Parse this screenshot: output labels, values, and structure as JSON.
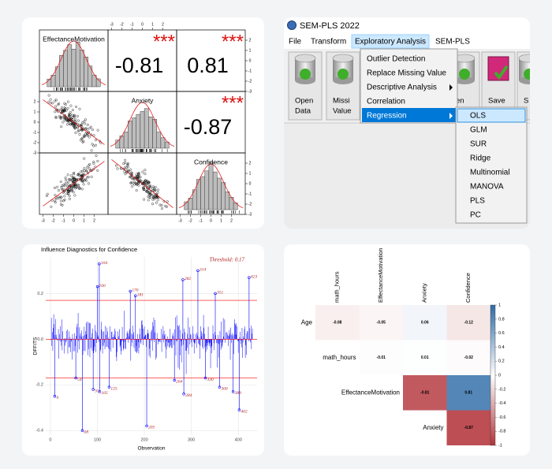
{
  "pairs_plot": {
    "variables": [
      "EffectanceMotivation",
      "Anxiety",
      "Confidence"
    ],
    "correlations": [
      [
        null,
        -0.81,
        0.81
      ],
      [
        null,
        null,
        -0.87
      ],
      [
        null,
        null,
        null
      ]
    ],
    "significance": "***",
    "xticks": [
      -3,
      -2,
      -1,
      0,
      1,
      2
    ],
    "yticks": [
      -3,
      -2,
      -1,
      0,
      1,
      2
    ]
  },
  "app_window": {
    "title": "SEM-PLS 2022",
    "menu": [
      "File",
      "Transform",
      "Exploratory Analysis",
      "SEM-PLS"
    ],
    "toolbar": [
      [
        "Open",
        "Data"
      ],
      [
        "Missi",
        "Value"
      ],
      [
        "en"
      ],
      [
        "Save"
      ],
      [
        "S"
      ]
    ],
    "dropdown": [
      "Outlier Detection",
      "Replace Missing Value",
      "Descriptive Analysis",
      "Correlation",
      "Regression"
    ],
    "submenu": [
      "OLS",
      "GLM",
      "SUR",
      "Ridge",
      "Multinomial",
      "MANOVA",
      "PLS",
      "PC"
    ]
  },
  "influence_plot": {
    "type": "lollipop",
    "title": "Influence Diagnostics for Confidence",
    "threshold": 0.17,
    "threshold_label": "Threshold: 0.17",
    "x_label": "Observation",
    "y_label": "DFFITS",
    "xlim": [
      -10,
      440
    ],
    "ylim": [
      -0.42,
      0.36
    ],
    "xticks": [
      0,
      100,
      200,
      300,
      400
    ],
    "yticks": [
      -0.4,
      -0.2,
      {
        "value": 0,
        "label": "0.0"
      },
      0.2
    ],
    "color": "#0000ff",
    "threshold_color": "#ff0000",
    "x": [
      104,
      100,
      170,
      181,
      282,
      314,
      351,
      423,
      9,
      54,
      91,
      105,
      125,
      68,
      205,
      264,
      284,
      330,
      360,
      389,
      402
    ],
    "values": [
      0.33,
      0.23,
      0.21,
      0.19,
      0.26,
      0.3,
      0.2,
      0.27,
      -0.25,
      -0.17,
      -0.22,
      -0.23,
      -0.21,
      -0.4,
      -0.38,
      -0.18,
      -0.24,
      -0.17,
      -0.21,
      -0.23,
      -0.31
    ]
  },
  "heatmap": {
    "columns": [
      "math_hours",
      "EffectanceMotivation",
      "Anxiety",
      "Confidence"
    ],
    "rows": [
      "Age",
      "math_hours",
      "EffectanceMotivation",
      "Anxiety"
    ],
    "values": [
      [
        -0.08,
        -0.05,
        0.06,
        -0.12
      ],
      [
        null,
        -0.01,
        0.01,
        -0.02
      ],
      [
        null,
        null,
        -0.81,
        0.81
      ],
      [
        null,
        null,
        null,
        -0.87
      ]
    ],
    "clim": [
      -1,
      1
    ],
    "colorbar_ticks": [
      1,
      0.8,
      0.6,
      0.4,
      0.2,
      0,
      -0.2,
      -0.4,
      -0.6,
      -0.8,
      -1
    ]
  }
}
